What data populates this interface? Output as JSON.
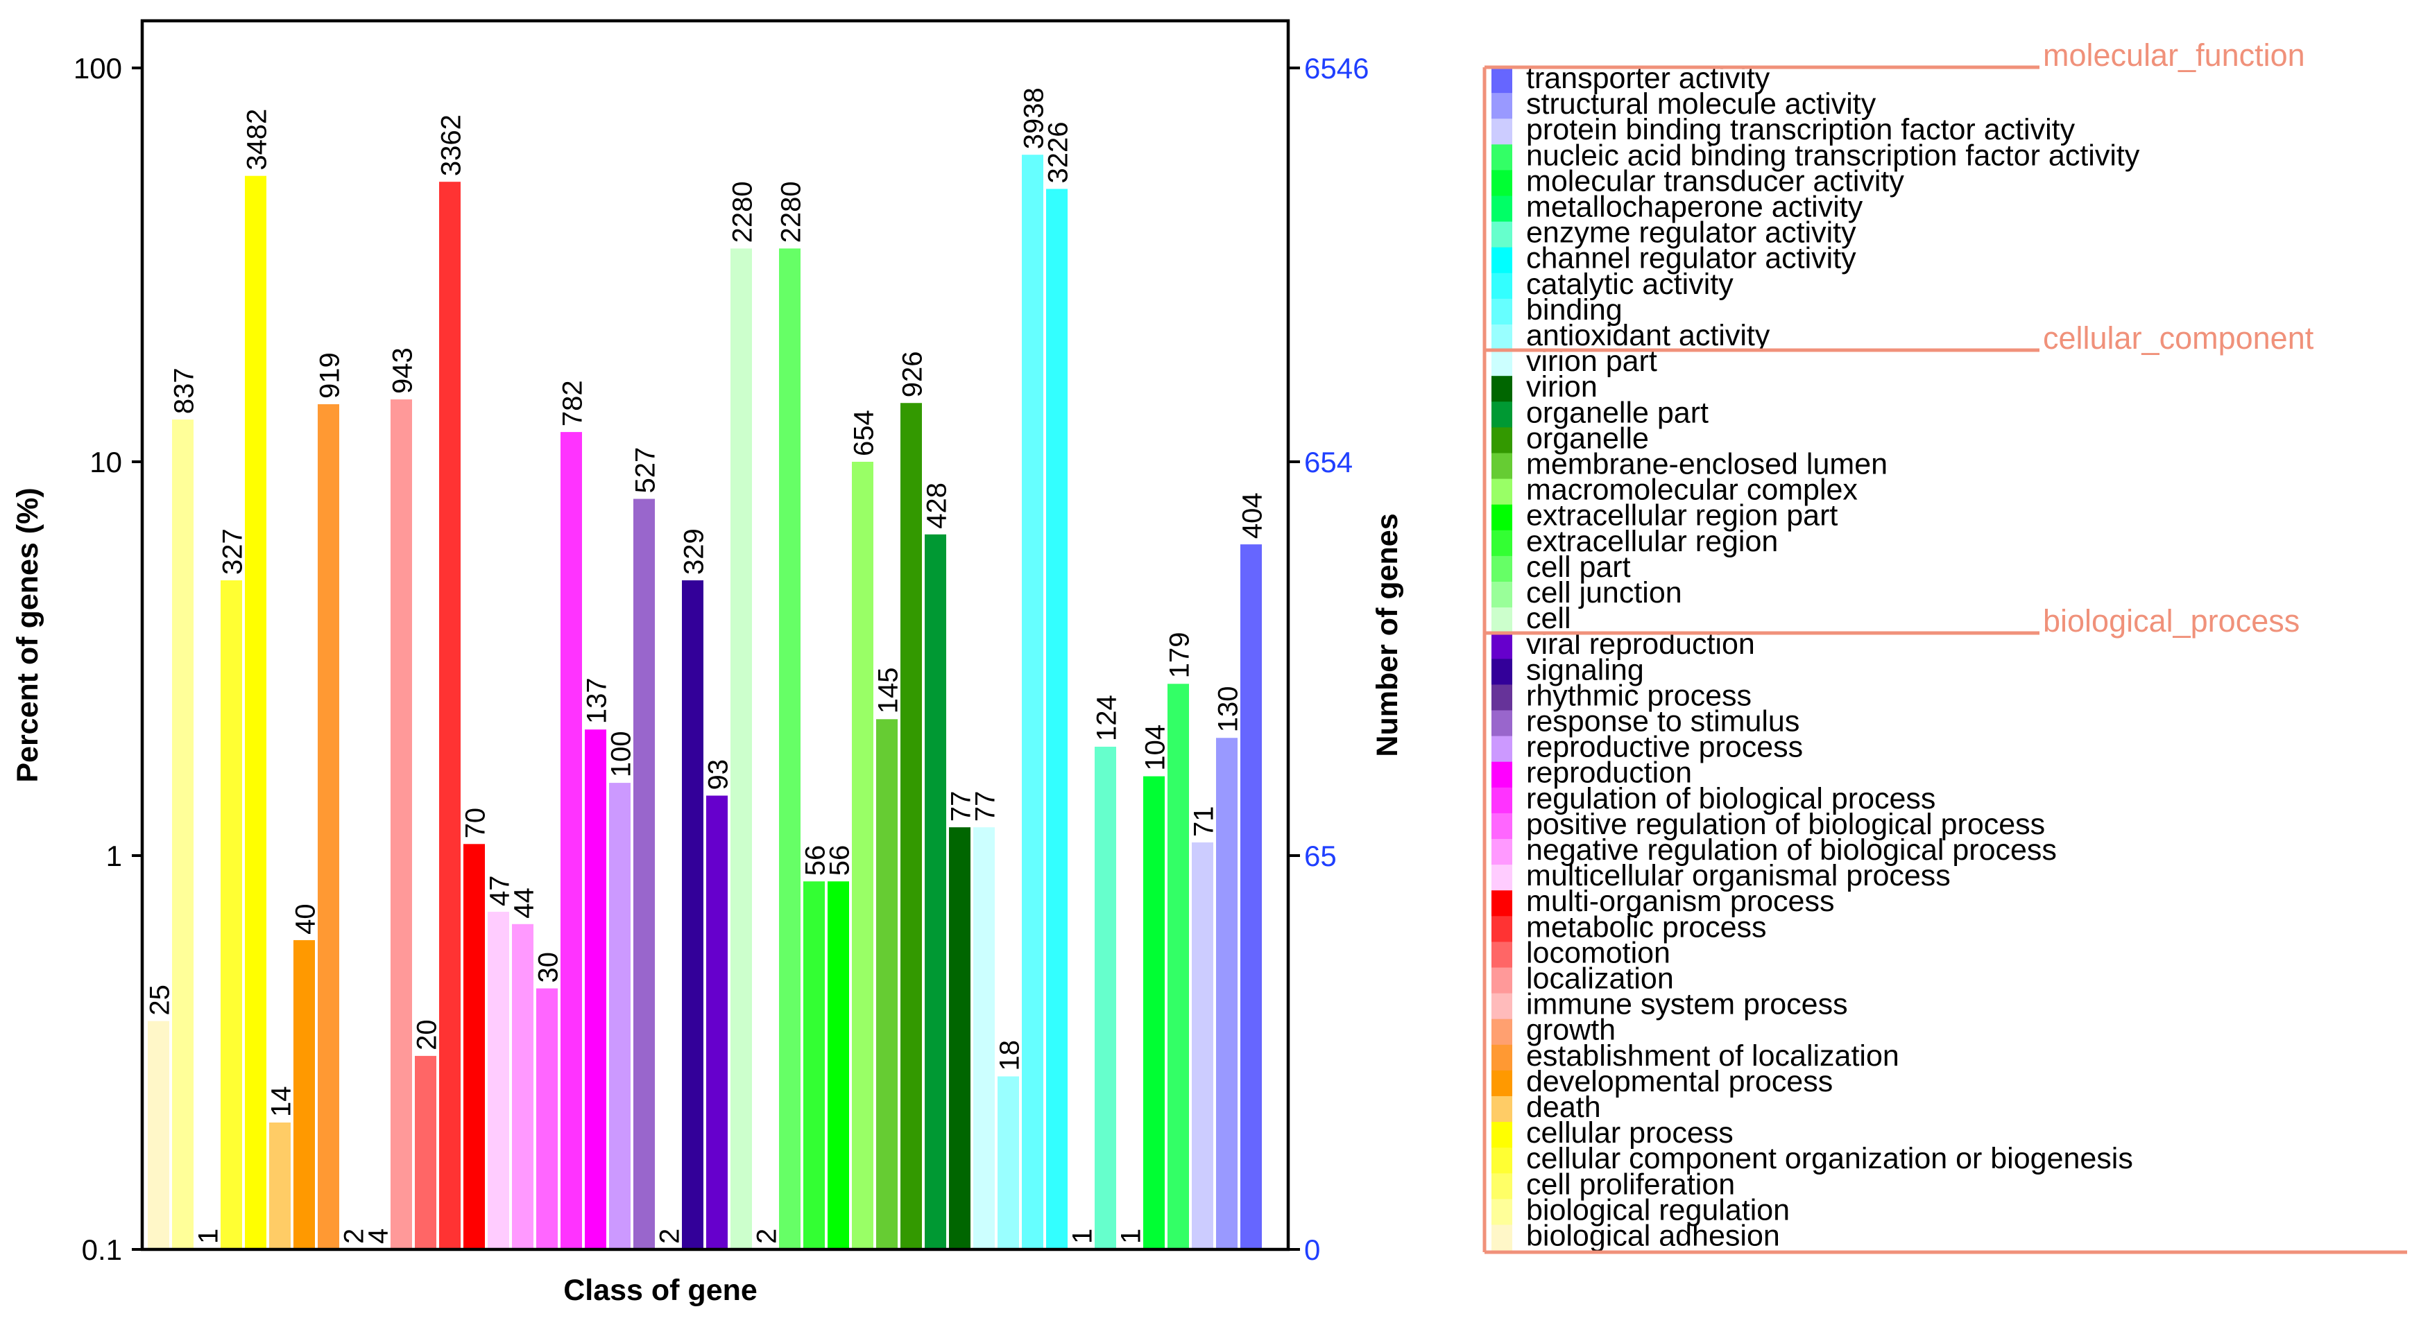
{
  "chart_data": {
    "type": "bar",
    "xlabel": "Class of gene",
    "ylabel_left": "Percent of genes (%)",
    "ylabel_right": "Number of genes",
    "y_scale": "log",
    "ylim": [
      0.1,
      100
    ],
    "left_ticks": [
      "100",
      "10",
      "1",
      "0.1"
    ],
    "left_tick_values": [
      100,
      10,
      1,
      0.1
    ],
    "right_ticks": [
      "6546",
      "654",
      "65",
      "0"
    ],
    "groups": [
      {
        "name": "biological_process"
      },
      {
        "name": "cellular_component"
      },
      {
        "name": "molecular_function"
      }
    ],
    "categories": [
      {
        "name": "biological adhesion",
        "group": "biological_process",
        "count": 25,
        "percent": 0.38,
        "color": "#fff7c8"
      },
      {
        "name": "biological regulation",
        "group": "biological_process",
        "count": 837,
        "percent": 12.8,
        "color": "#ffff99"
      },
      {
        "name": "cell proliferation",
        "group": "biological_process",
        "count": 1,
        "percent": 0.015,
        "color": "#ffff66"
      },
      {
        "name": "cellular component organization or biogenesis",
        "group": "biological_process",
        "count": 327,
        "percent": 5.0,
        "color": "#ffff33"
      },
      {
        "name": "cellular process",
        "group": "biological_process",
        "count": 3482,
        "percent": 53.2,
        "color": "#ffff00"
      },
      {
        "name": "death",
        "group": "biological_process",
        "count": 14,
        "percent": 0.21,
        "color": "#ffcc66"
      },
      {
        "name": "developmental process",
        "group": "biological_process",
        "count": 40,
        "percent": 0.61,
        "color": "#ff9900"
      },
      {
        "name": "establishment of localization",
        "group": "biological_process",
        "count": 919,
        "percent": 14.0,
        "color": "#ff9933"
      },
      {
        "name": "growth",
        "group": "biological_process",
        "count": 2,
        "percent": 0.031,
        "color": "#ffa070"
      },
      {
        "name": "immune system process",
        "group": "biological_process",
        "count": 4,
        "percent": 0.061,
        "color": "#ffbbbb"
      },
      {
        "name": "localization",
        "group": "biological_process",
        "count": 943,
        "percent": 14.4,
        "color": "#ff9999"
      },
      {
        "name": "locomotion",
        "group": "biological_process",
        "count": 20,
        "percent": 0.31,
        "color": "#ff6666"
      },
      {
        "name": "metabolic process",
        "group": "biological_process",
        "count": 3362,
        "percent": 51.4,
        "color": "#ff3333"
      },
      {
        "name": "multi-organism process",
        "group": "biological_process",
        "count": 70,
        "percent": 1.07,
        "color": "#ff0000"
      },
      {
        "name": "multicellular organismal process",
        "group": "biological_process",
        "count": 47,
        "percent": 0.72,
        "color": "#ffccff"
      },
      {
        "name": "negative regulation of biological process",
        "group": "biological_process",
        "count": 44,
        "percent": 0.67,
        "color": "#ff99ff"
      },
      {
        "name": "positive regulation of biological process",
        "group": "biological_process",
        "count": 30,
        "percent": 0.46,
        "color": "#ff66ff"
      },
      {
        "name": "regulation of biological process",
        "group": "biological_process",
        "count": 782,
        "percent": 11.9,
        "color": "#ff33ff"
      },
      {
        "name": "reproduction",
        "group": "biological_process",
        "count": 137,
        "percent": 2.09,
        "color": "#ff00ff"
      },
      {
        "name": "reproductive process",
        "group": "biological_process",
        "count": 100,
        "percent": 1.53,
        "color": "#cc99ff"
      },
      {
        "name": "response to stimulus",
        "group": "biological_process",
        "count": 527,
        "percent": 8.05,
        "color": "#9966cc"
      },
      {
        "name": "rhythmic process",
        "group": "biological_process",
        "count": 2,
        "percent": 0.031,
        "color": "#663399"
      },
      {
        "name": "signaling",
        "group": "biological_process",
        "count": 329,
        "percent": 5.0,
        "color": "#330099"
      },
      {
        "name": "viral reproduction",
        "group": "biological_process",
        "count": 93,
        "percent": 1.42,
        "color": "#6600cc"
      },
      {
        "name": "cell",
        "group": "cellular_component",
        "count": 2280,
        "percent": 34.8,
        "color": "#ccffcc"
      },
      {
        "name": "cell junction",
        "group": "cellular_component",
        "count": 2,
        "percent": 0.031,
        "color": "#99ff99"
      },
      {
        "name": "cell part",
        "group": "cellular_component",
        "count": 2280,
        "percent": 34.8,
        "color": "#66ff66"
      },
      {
        "name": "extracellular region",
        "group": "cellular_component",
        "count": 56,
        "percent": 0.86,
        "color": "#33ff33"
      },
      {
        "name": "extracellular region part",
        "group": "cellular_component",
        "count": 56,
        "percent": 0.86,
        "color": "#00ff00"
      },
      {
        "name": "macromolecular complex",
        "group": "cellular_component",
        "count": 654,
        "percent": 10.0,
        "color": "#99ff66"
      },
      {
        "name": "membrane-enclosed lumen",
        "group": "cellular_component",
        "count": 145,
        "percent": 2.22,
        "color": "#66cc33"
      },
      {
        "name": "organelle",
        "group": "cellular_component",
        "count": 926,
        "percent": 14.1,
        "color": "#339900"
      },
      {
        "name": "organelle part",
        "group": "cellular_component",
        "count": 428,
        "percent": 6.54,
        "color": "#009933"
      },
      {
        "name": "virion",
        "group": "cellular_component",
        "count": 77,
        "percent": 1.18,
        "color": "#006600"
      },
      {
        "name": "virion part",
        "group": "cellular_component",
        "count": 77,
        "percent": 1.18,
        "color": "#ccffff"
      },
      {
        "name": "antioxidant activity",
        "group": "molecular_function",
        "count": 18,
        "percent": 0.275,
        "color": "#99ffff"
      },
      {
        "name": "binding",
        "group": "molecular_function",
        "count": 3938,
        "percent": 60.2,
        "color": "#66ffff"
      },
      {
        "name": "catalytic activity",
        "group": "molecular_function",
        "count": 3226,
        "percent": 49.3,
        "color": "#33ffff"
      },
      {
        "name": "channel regulator activity",
        "group": "molecular_function",
        "count": 1,
        "percent": 0.015,
        "color": "#00ffff"
      },
      {
        "name": "enzyme regulator activity",
        "group": "molecular_function",
        "count": 124,
        "percent": 1.89,
        "color": "#66ffcc"
      },
      {
        "name": "metallochaperone activity",
        "group": "molecular_function",
        "count": 1,
        "percent": 0.015,
        "color": "#00ff66"
      },
      {
        "name": "molecular transducer activity",
        "group": "molecular_function",
        "count": 104,
        "percent": 1.59,
        "color": "#00ff33"
      },
      {
        "name": "nucleic acid binding transcription factor activity",
        "group": "molecular_function",
        "count": 179,
        "percent": 2.73,
        "color": "#33ff66"
      },
      {
        "name": "protein binding transcription factor activity",
        "group": "molecular_function",
        "count": 71,
        "percent": 1.08,
        "color": "#ccccff"
      },
      {
        "name": "structural molecule activity",
        "group": "molecular_function",
        "count": 130,
        "percent": 1.99,
        "color": "#9999ff"
      },
      {
        "name": "transporter activity",
        "group": "molecular_function",
        "count": 404,
        "percent": 6.17,
        "color": "#6666ff"
      }
    ]
  }
}
